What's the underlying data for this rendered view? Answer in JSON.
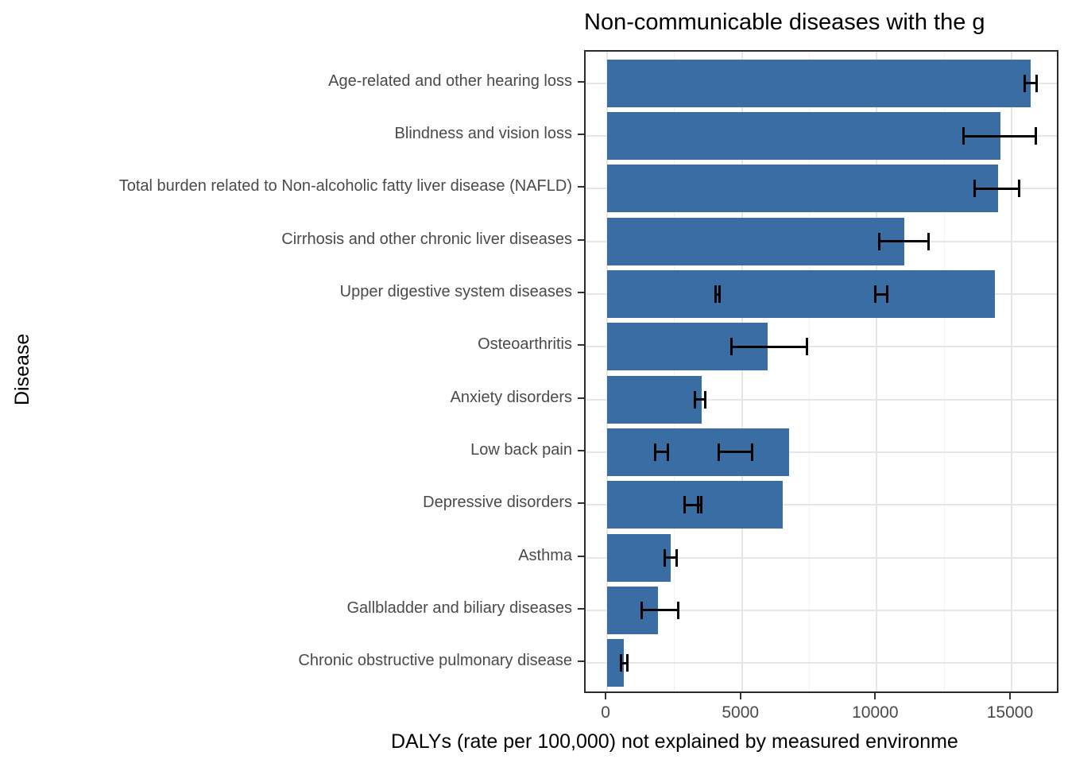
{
  "title": "Non-communicable diseases with the g",
  "axes": {
    "x_label": "DALYs (rate per 100,000) not explained by measured environme",
    "y_label": "Disease"
  },
  "chart_data": {
    "type": "bar",
    "orientation": "horizontal",
    "title": "Non-communicable diseases with the g",
    "xlabel": "DALYs (rate per 100,000) not explained by measured environme",
    "ylabel": "Disease",
    "xlim": [
      -800,
      16800
    ],
    "x_major_ticks": [
      0,
      5000,
      10000,
      15000
    ],
    "x_major_tick_labels": [
      "0",
      "5000",
      "10000",
      "15000"
    ],
    "x_minor_ticks": [
      2500,
      7500,
      12500
    ],
    "grid": true,
    "legend": false,
    "bar_color": "#3a6da4",
    "errorbar_color": "#000000",
    "categories": [
      "Age-related and other hearing loss",
      "Blindness and vision loss",
      "Total burden related to Non-alcoholic fatty liver disease (NAFLD)",
      "Cirrhosis and other chronic liver diseases",
      "Upper digestive system diseases",
      "Osteoarthritis",
      "Anxiety disorders",
      "Low back pain",
      "Depressive disorders",
      "Asthma",
      "Gallbladder and biliary diseases",
      "Chronic obstructive pulmonary disease"
    ],
    "values": [
      15700,
      14590,
      14500,
      11020,
      14380,
      5940,
      3515,
      6760,
      6500,
      2360,
      1890,
      620
    ],
    "error_bars": [
      [
        [
          15450,
          15970
        ]
      ],
      [
        [
          13170,
          15950
        ]
      ],
      [
        [
          13580,
          15330
        ]
      ],
      [
        [
          10040,
          11960
        ]
      ],
      [
        [
          3990,
          4220
        ],
        [
          9890,
          10420
        ]
      ],
      [
        [
          4580,
          7440
        ]
      ],
      [
        [
          3220,
          3690
        ]
      ],
      [
        [
          1740,
          2300
        ],
        [
          4080,
          5430
        ]
      ],
      [
        [
          2835,
          3545
        ],
        [
          3340,
          3545
        ]
      ],
      [
        [
          2100,
          2630
        ]
      ],
      [
        [
          1240,
          2690
        ]
      ],
      [
        [
          460,
          780
        ]
      ]
    ]
  }
}
